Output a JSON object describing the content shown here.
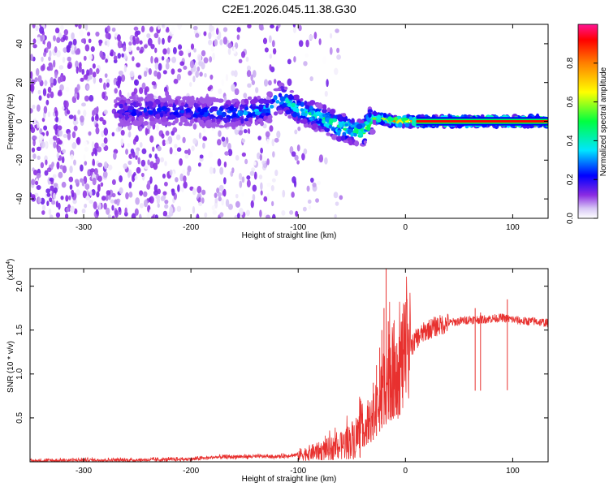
{
  "figure": {
    "title": "C2E1.2026.045.11.38.G30"
  },
  "chart_data": [
    {
      "type": "heatmap",
      "title": "C2E1.2026.045.11.38.G30",
      "xlabel": "Height of straight line (km)",
      "ylabel": "Frequency (Hz)",
      "xlim": [
        -350,
        133
      ],
      "ylim": [
        -50,
        50
      ],
      "xticks": [
        -300,
        -200,
        -100,
        0,
        100
      ],
      "yticks": [
        -40,
        -20,
        0,
        20,
        40
      ],
      "grid": false,
      "description_points": {
        "ridge_center_freq_x": [
          -270,
          -240,
          -200,
          -160,
          -130,
          -115,
          -100,
          -80,
          -60,
          -40,
          -30,
          -20,
          -10,
          0,
          10,
          50,
          133
        ],
        "ridge_center_freq_y": [
          5,
          6,
          5,
          4,
          6,
          12,
          6,
          2,
          -3,
          -6,
          2,
          1,
          0,
          0,
          0,
          0,
          0
        ],
        "peak_amplitude_x": [
          -210,
          -170,
          -130,
          -115,
          -90,
          -70,
          -50,
          -35,
          -25,
          -10,
          0,
          50,
          133
        ],
        "peak_amplitude": [
          0.25,
          0.3,
          0.35,
          0.4,
          0.45,
          0.5,
          0.45,
          0.55,
          0.7,
          0.8,
          0.9,
          0.95,
          0.95
        ]
      },
      "colorbar": {
        "label": "Normalized spectral amplitude",
        "range": [
          0,
          1
        ],
        "ticks": [
          "0.0",
          "0.2",
          "0.4",
          "0.6",
          "0.8"
        ],
        "tick_values": [
          0,
          0.2,
          0.4,
          0.6,
          0.8
        ],
        "colors": [
          "#ffffff",
          "#8a2be2",
          "#0000ff",
          "#00e5ff",
          "#00ff00",
          "#ffff00",
          "#ff8000",
          "#ff0000",
          "#ff1493"
        ]
      }
    },
    {
      "type": "line",
      "xlabel": "Height of straight line (km)",
      "ylabel": "SNR (10 * v/v)",
      "y_multiplier": "(x10",
      "y_multiplier_exp": "4",
      "y_multiplier_close": ")",
      "xlim": [
        -350,
        133
      ],
      "ylim": [
        0,
        2.2
      ],
      "xticks": [
        -300,
        -200,
        -100,
        0,
        100
      ],
      "yticks": [
        0.5,
        1.0,
        1.5,
        2.0
      ],
      "ytick_labels": [
        "0.5",
        "1.0",
        "1.5",
        "2.0"
      ],
      "grid": false,
      "series": [
        {
          "name": "SNR",
          "color": "#e8312f",
          "x": [
            -350,
            -300,
            -250,
            -200,
            -180,
            -150,
            -120,
            -100,
            -80,
            -60,
            -50,
            -40,
            -30,
            -25,
            -20,
            -15,
            -10,
            -5,
            0,
            5,
            10,
            20,
            30,
            40,
            50,
            60,
            70,
            80,
            90,
            100,
            110,
            120,
            133
          ],
          "y": [
            0.01,
            0.02,
            0.02,
            0.03,
            0.05,
            0.06,
            0.06,
            0.08,
            0.12,
            0.18,
            0.25,
            0.35,
            0.5,
            0.65,
            0.85,
            1.0,
            1.05,
            1.1,
            1.2,
            1.3,
            1.4,
            1.5,
            1.55,
            1.58,
            1.6,
            1.62,
            1.62,
            1.63,
            1.64,
            1.62,
            1.6,
            1.6,
            1.58
          ]
        }
      ],
      "annotations": [
        {
          "x": -18,
          "y": 2.2,
          "text": ""
        }
      ],
      "spikes": {
        "x": [
          -40,
          -35,
          -30,
          -27,
          -24,
          -22,
          -20,
          -18,
          -16,
          -14,
          -12,
          -10,
          -8,
          -6,
          65,
          70,
          95
        ],
        "y": [
          0.55,
          0.7,
          0.9,
          1.1,
          1.3,
          1.5,
          1.75,
          2.2,
          1.6,
          1.3,
          1.4,
          1.25,
          1.35,
          1.2,
          1.75,
          1.7,
          1.85
        ]
      }
    }
  ]
}
